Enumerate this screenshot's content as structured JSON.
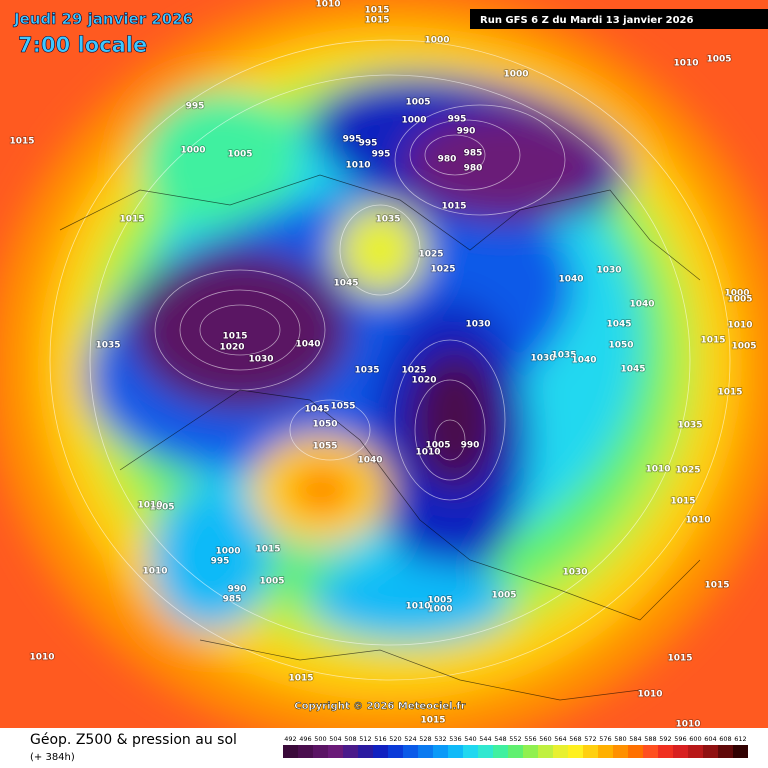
{
  "header": {
    "title": "Jeudi 29 janvier 2026",
    "time": "7:00 locale",
    "run": "Run GFS 6 Z du Mardi 13 janvier 2026"
  },
  "map": {
    "copyright": "Copyright © 2026 Meteociel.fr",
    "isobar_labels": [
      1010,
      1015,
      1015,
      1000,
      1010,
      1005,
      1000,
      1015,
      995,
      1000,
      1005,
      1005,
      1000,
      995,
      990,
      985,
      980,
      980,
      995,
      995,
      995,
      1010,
      1015,
      1015,
      1035,
      1025,
      1025,
      1045,
      1040,
      1030,
      1040,
      1030,
      1045,
      1050,
      1035,
      1015,
      1020,
      1030,
      1040,
      1035,
      1025,
      1020,
      1030,
      1035,
      1040,
      1045,
      1015,
      1005,
      1000,
      1005,
      1010,
      1015,
      1035,
      1045,
      1055,
      1050,
      1055,
      1040,
      1010,
      1005,
      990,
      1010,
      1025,
      1015,
      1010,
      1005,
      1010,
      1000,
      995,
      1015,
      990,
      985,
      1010,
      1005,
      1030,
      1005,
      1005,
      1000,
      1010,
      1015,
      1010,
      1015,
      1015,
      1010,
      1015,
      1010
    ]
  },
  "footer": {
    "title": "Géop. Z500 & pression au sol",
    "lead": "(+ 384h)"
  },
  "colorbar": {
    "values": [
      492,
      496,
      500,
      504,
      508,
      512,
      516,
      520,
      524,
      528,
      532,
      536,
      540,
      544,
      548,
      552,
      556,
      560,
      564,
      568,
      572,
      576,
      580,
      584,
      588,
      592,
      596,
      600,
      604,
      608,
      612
    ],
    "colors": [
      "#3a0a3a",
      "#4a0e4e",
      "#5a1464",
      "#6a1a78",
      "#4a1a8a",
      "#2a1aa0",
      "#1020c0",
      "#0a3ad8",
      "#0a5ae8",
      "#0a7af0",
      "#0a9af8",
      "#10baf8",
      "#20d8f0",
      "#30e8d0",
      "#40f0a0",
      "#60f070",
      "#90f050",
      "#c0f040",
      "#e8f030",
      "#fff020",
      "#ffd010",
      "#ffb000",
      "#ff9000",
      "#ff7000",
      "#ff5020",
      "#f03020",
      "#d82020",
      "#b81818",
      "#901010",
      "#600808",
      "#300000"
    ]
  }
}
